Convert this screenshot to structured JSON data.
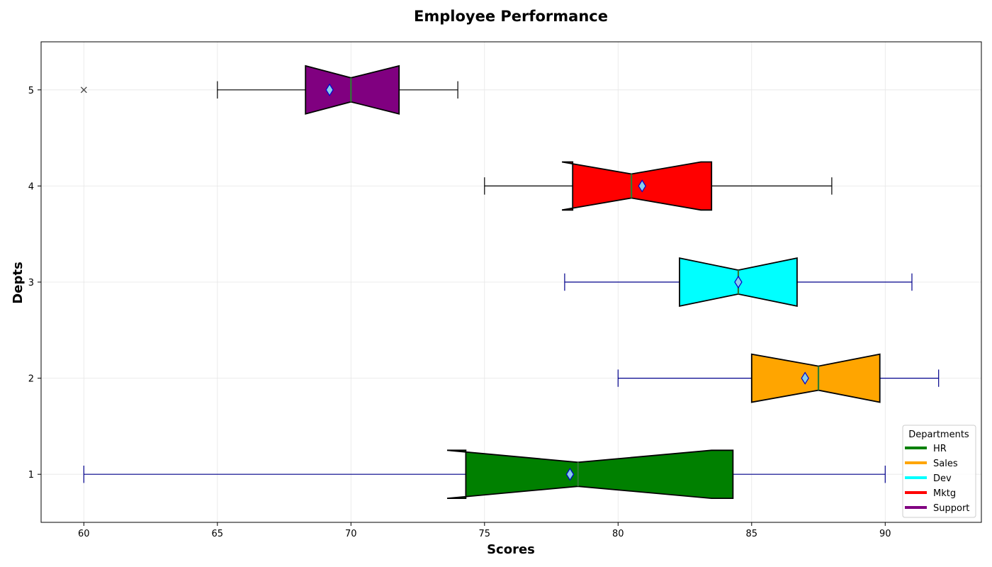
{
  "chart_data": {
    "type": "boxplot",
    "orientation": "horizontal",
    "notched": true,
    "title": "Employee Performance",
    "xlabel": "Scores",
    "ylabel": "Depts",
    "xlim": [
      58.4,
      93.6
    ],
    "ylim": [
      0.5,
      5.5
    ],
    "xticks": [
      60,
      65,
      70,
      75,
      80,
      85,
      90
    ],
    "yticks": [
      1,
      2,
      3,
      4,
      5
    ],
    "grid": true,
    "legend": {
      "title": "Departments",
      "placement": "lower-right",
      "entries": [
        "HR",
        "Sales",
        "Dev",
        "Mktg",
        "Support"
      ]
    },
    "series": [
      {
        "name": "HR",
        "position": 1,
        "color": "#008000",
        "whisker_color": "#00008b",
        "whisker_low": 60,
        "q1": 74.3,
        "median": 78.5,
        "q3": 84.3,
        "whisker_high": 90,
        "notch_low": 73.6,
        "notch_high": 83.5,
        "mean": 78.2,
        "outliers": []
      },
      {
        "name": "Sales",
        "position": 2,
        "color": "#ffa500",
        "whisker_color": "#00008b",
        "whisker_low": 80,
        "q1": 85,
        "median": 87.5,
        "q3": 89.8,
        "whisker_high": 92,
        "notch_low": 85.0,
        "notch_high": 89.8,
        "mean": 87.0,
        "outliers": []
      },
      {
        "name": "Dev",
        "position": 3,
        "color": "#00ffff",
        "whisker_color": "#00008b",
        "whisker_low": 78,
        "q1": 82.3,
        "median": 84.5,
        "q3": 86.7,
        "whisker_high": 91,
        "notch_low": 82.3,
        "notch_high": 86.7,
        "mean": 84.5,
        "outliers": []
      },
      {
        "name": "Mktg",
        "position": 4,
        "color": "#ff0000",
        "whisker_color": "#000000",
        "whisker_low": 75,
        "q1": 78.3,
        "median": 80.5,
        "q3": 83.5,
        "whisker_high": 88,
        "notch_low": 77.9,
        "notch_high": 83.1,
        "mean": 80.9,
        "outliers": []
      },
      {
        "name": "Support",
        "position": 5,
        "color": "#800080",
        "whisker_color": "#000000",
        "whisker_low": 65,
        "q1": 68.3,
        "median": 70,
        "q3": 71.8,
        "whisker_high": 74,
        "notch_low": 68.3,
        "notch_high": 71.8,
        "mean": 69.2,
        "outliers": [
          60
        ]
      }
    ]
  }
}
